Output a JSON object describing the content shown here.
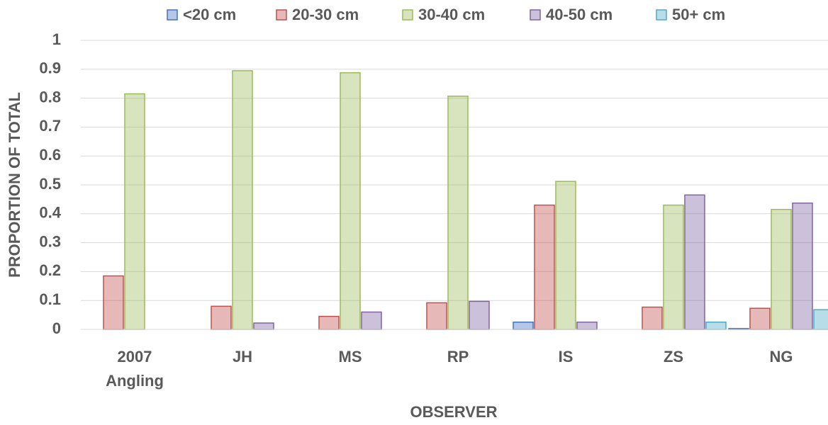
{
  "chart_data": {
    "type": "bar",
    "x_label": "OBSERVER",
    "y_label": "PROPORTION OF TOTAL",
    "categories": [
      "2007 Angling",
      "JH",
      "MS",
      "RP",
      "IS",
      "ZS",
      "NG"
    ],
    "series": [
      {
        "name": "<20 cm",
        "color": "#4472c4",
        "values": [
          0,
          0,
          0,
          0,
          0.025,
          0,
          0.003
        ]
      },
      {
        "name": "20-30 cm",
        "color": "#c0504d",
        "values": [
          0.185,
          0.08,
          0.045,
          0.092,
          0.43,
          0.077,
          0.073
        ]
      },
      {
        "name": "30-40 cm",
        "color": "#9bbb59",
        "values": [
          0.815,
          0.895,
          0.888,
          0.807,
          0.512,
          0.43,
          0.415
        ]
      },
      {
        "name": "40-50 cm",
        "color": "#8064a2",
        "values": [
          0,
          0.022,
          0.06,
          0.097,
          0.025,
          0.465,
          0.437
        ]
      },
      {
        "name": "50+ cm",
        "color": "#4bacc6",
        "values": [
          0,
          0,
          0,
          0,
          0,
          0.025,
          0.068
        ]
      }
    ],
    "ylim": [
      0,
      1
    ],
    "yticks": [
      0,
      0.1,
      0.2,
      0.3,
      0.4,
      0.5,
      0.6,
      0.7,
      0.8,
      0.9,
      1
    ],
    "grid": true,
    "legend": "top"
  }
}
